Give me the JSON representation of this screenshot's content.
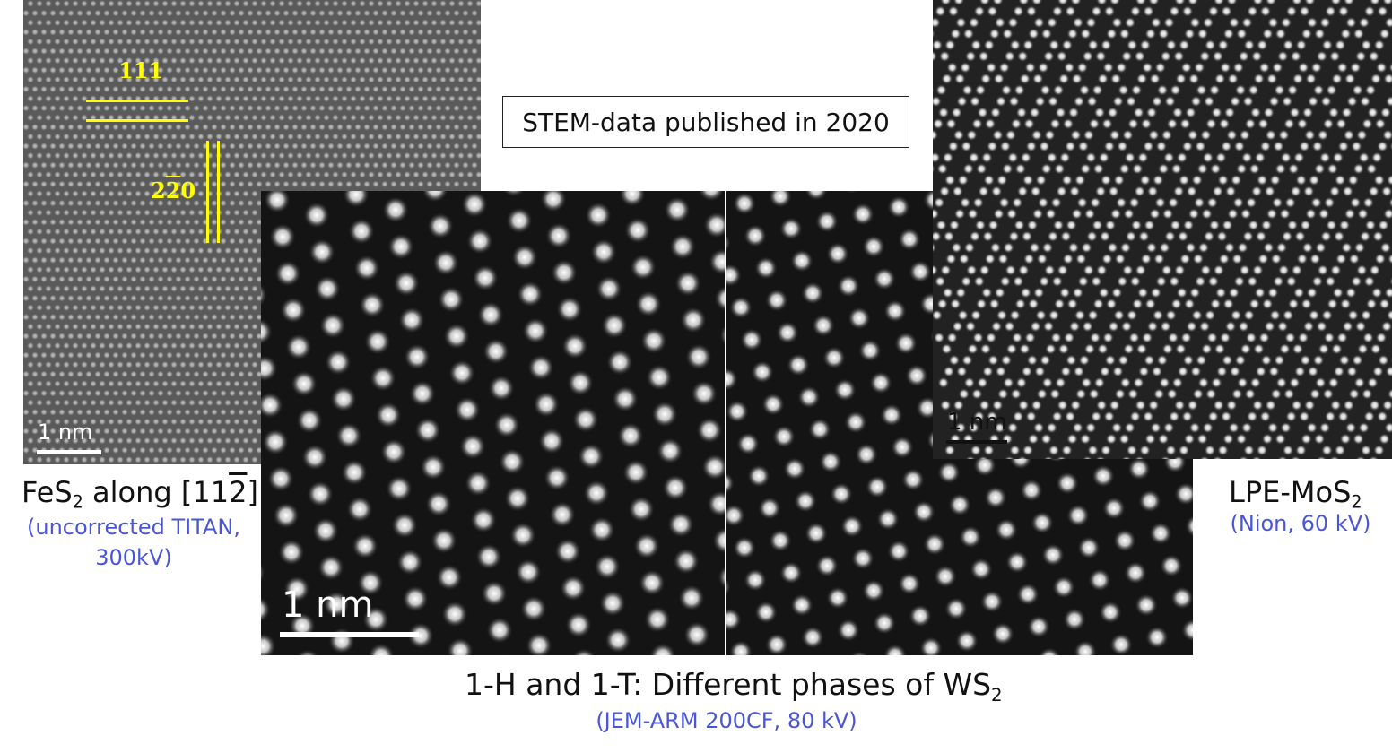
{
  "banner": {
    "text": "STEM-data published in 2020"
  },
  "fes2": {
    "annotation_111": "111",
    "annotation_220_digit1": "2",
    "annotation_220_digit2": "2",
    "annotation_220_digit3": "0",
    "scalebar_label": "1 nm",
    "title_prefix": "FeS",
    "title_sub": "2",
    "title_suffix_a": " along [11",
    "title_bar_digit": "2",
    "title_suffix_b": "]",
    "instrument_line1": "(uncorrected TITAN,",
    "instrument_line2": "300kV)"
  },
  "ws2": {
    "scalebar_label": "1 nm",
    "title_prefix": "1-H and 1-T: Different phases of WS",
    "title_sub": "2",
    "instrument": "(JEM-ARM 200CF, 80 kV)"
  },
  "mos2": {
    "scalebar_label": "1 nm",
    "title_prefix": "LPE-MoS",
    "title_sub": "2",
    "instrument": "(Nion, 60 kV)"
  },
  "colors": {
    "annotation": "#ffff00",
    "instrument_text": "#4a55d8",
    "scalebar": "#ffffff"
  }
}
